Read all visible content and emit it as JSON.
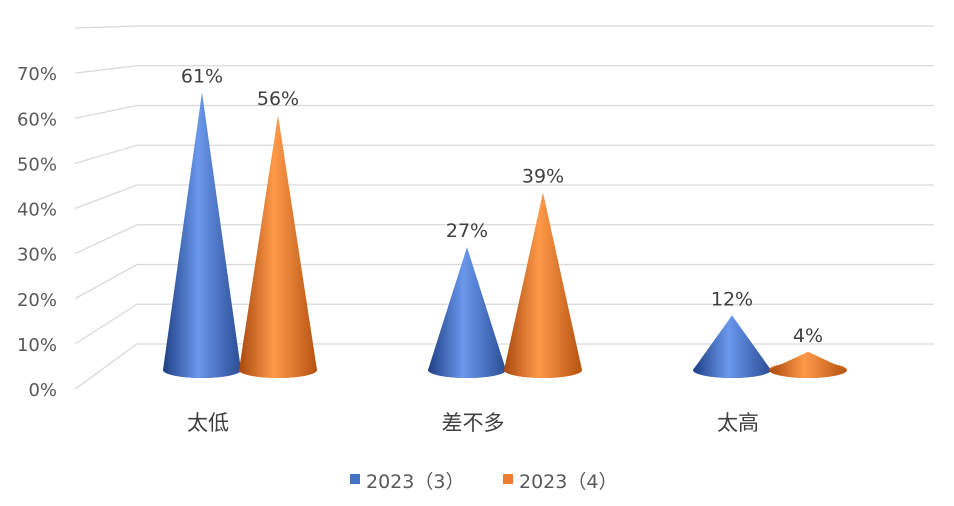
{
  "chart_data": {
    "type": "bar",
    "style": "3d-cone",
    "categories": [
      "太低",
      "差不多",
      "太高"
    ],
    "series": [
      {
        "name": "2023（3）",
        "values": [
          61,
          27,
          12
        ],
        "labels": [
          "61%",
          "27%",
          "12%"
        ],
        "color": "#4472C4"
      },
      {
        "name": "2023（4）",
        "values": [
          56,
          39,
          4
        ],
        "labels": [
          "56%",
          "39%",
          "4%"
        ],
        "color": "#ED7D31"
      }
    ],
    "yticks": [
      "0%",
      "10%",
      "20%",
      "30%",
      "40%",
      "50%",
      "60%",
      "70%"
    ],
    "ylim": [
      0,
      80
    ],
    "grid": true,
    "legend": "bottom-center"
  }
}
